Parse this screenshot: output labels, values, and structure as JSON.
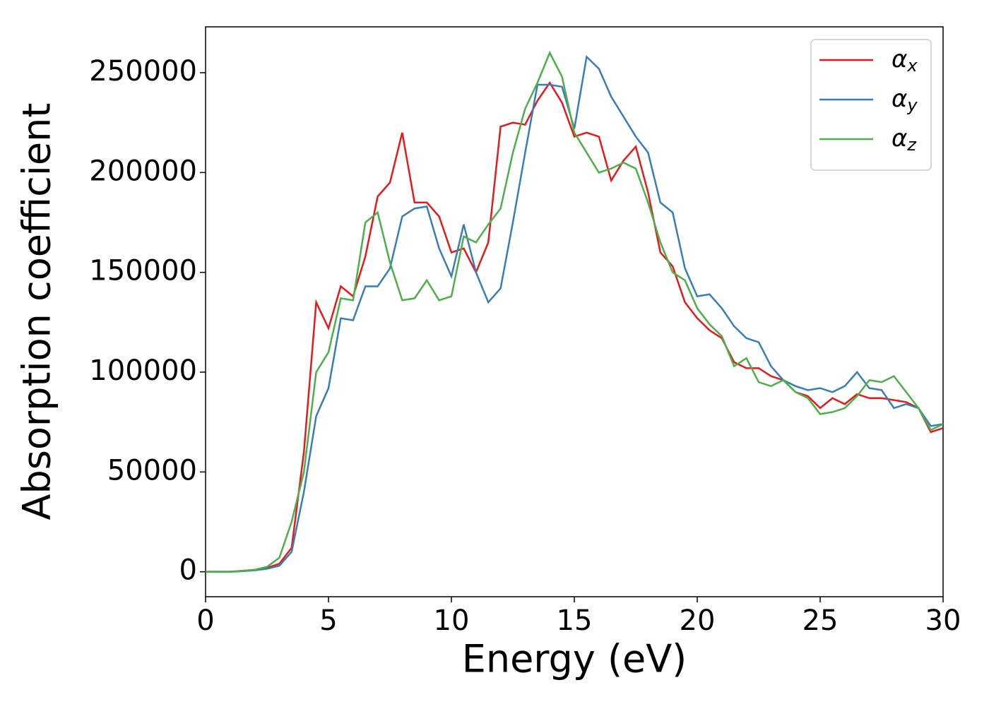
{
  "chart_data": {
    "type": "line",
    "x_label": "Energy (eV)",
    "y_label": "Absorption coefficient",
    "x": [
      0,
      0.5,
      1,
      1.5,
      2,
      2.5,
      3,
      3.5,
      4,
      4.5,
      5,
      5.5,
      6,
      6.5,
      7,
      7.5,
      8,
      8.5,
      9,
      9.5,
      10,
      10.5,
      11,
      11.5,
      12,
      12.5,
      13,
      13.5,
      14,
      14.5,
      15,
      15.5,
      16,
      16.5,
      17,
      17.5,
      18,
      18.5,
      19,
      19.5,
      20,
      20.5,
      21,
      21.5,
      22,
      22.5,
      23,
      23.5,
      24,
      24.5,
      25,
      25.5,
      26,
      26.5,
      27,
      27.5,
      28,
      28.5,
      29,
      29.5,
      30
    ],
    "series": [
      {
        "name": "αx",
        "color": "#e41a1c",
        "values": [
          0,
          0,
          0,
          500,
          1000,
          2000,
          4000,
          12000,
          60000,
          135000,
          122000,
          143000,
          138000,
          158000,
          188000,
          195000,
          220000,
          185000,
          185000,
          178000,
          160000,
          162000,
          150000,
          165000,
          223000,
          225000,
          224000,
          236000,
          245000,
          235000,
          218000,
          220000,
          218000,
          196000,
          206000,
          213000,
          190000,
          160000,
          153000,
          135000,
          127000,
          121000,
          117000,
          105000,
          102000,
          102000,
          98000,
          96000,
          90000,
          88000,
          82000,
          87000,
          84000,
          89000,
          87000,
          87000,
          86000,
          85000,
          82000,
          70000,
          72000
        ]
      },
      {
        "name": "αy",
        "color": "#377eb8",
        "values": [
          0,
          0,
          0,
          300,
          700,
          1500,
          3000,
          10000,
          40000,
          78000,
          92000,
          127000,
          126000,
          143000,
          143000,
          152000,
          178000,
          182000,
          183000,
          162000,
          148000,
          174000,
          150000,
          135000,
          142000,
          175000,
          210000,
          244000,
          244000,
          243000,
          222000,
          258000,
          252000,
          238000,
          228000,
          218000,
          210000,
          185000,
          180000,
          152000,
          138000,
          139000,
          132000,
          123000,
          117000,
          115000,
          103000,
          96000,
          93000,
          91000,
          92000,
          90000,
          93000,
          100000,
          92000,
          91000,
          82000,
          84000,
          82000,
          73000,
          74000
        ]
      },
      {
        "name": "αz",
        "color": "#4daf4a",
        "values": [
          0,
          0,
          0,
          500,
          1000,
          2500,
          7000,
          25000,
          50000,
          100000,
          110000,
          137000,
          136000,
          175000,
          180000,
          155000,
          136000,
          137000,
          146000,
          136000,
          138000,
          168000,
          165000,
          174000,
          182000,
          210000,
          232000,
          245000,
          260000,
          248000,
          220000,
          210000,
          200000,
          202000,
          205000,
          202000,
          185000,
          165000,
          150000,
          146000,
          132000,
          124000,
          118000,
          103000,
          107000,
          95000,
          93000,
          96000,
          90000,
          87000,
          79000,
          80000,
          82000,
          88000,
          96000,
          95000,
          98000,
          90000,
          82000,
          71000,
          74000
        ]
      }
    ],
    "xlim": [
      0,
      30
    ],
    "xticks": [
      0,
      5,
      10,
      15,
      20,
      25,
      30
    ],
    "ylim": [
      -12500,
      273000
    ],
    "yticks": [
      0,
      50000,
      100000,
      150000,
      200000,
      250000
    ],
    "grid": false,
    "legend": "upper right"
  }
}
